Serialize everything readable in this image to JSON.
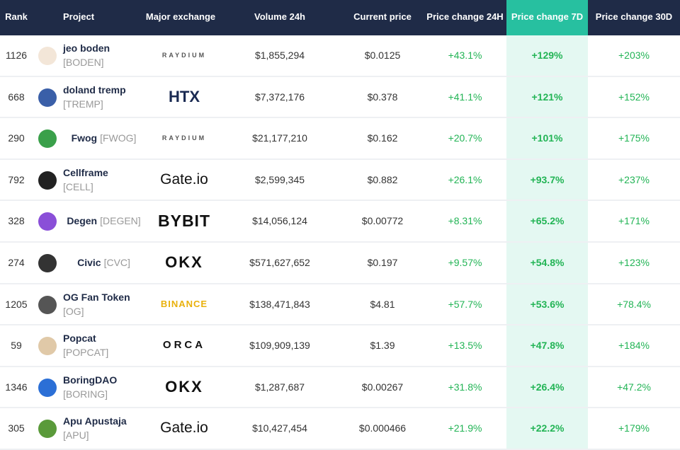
{
  "table": {
    "header": [
      "Rank",
      "Project",
      "Major exchange",
      "Volume 24h",
      "Current price",
      "Price change 24H",
      "Price change 7D",
      "Price change 30D"
    ],
    "rows": [
      {
        "rank": "1126",
        "name": "jeo boden",
        "ticker": "[BODEN]",
        "exchange": "RAYDIUM",
        "volume": "$1,855,294",
        "price": "$0.0125",
        "change_24h": "+43.1%",
        "change_7d": "+129%",
        "change_30d": "+203%"
      },
      {
        "rank": "668",
        "name": "doland tremp",
        "ticker": "[TREMP]",
        "exchange": "HTX",
        "volume": "$7,372,176",
        "price": "$0.378",
        "change_24h": "+41.1%",
        "change_7d": "+121%",
        "change_30d": "+152%"
      },
      {
        "rank": "290",
        "name": "Fwog",
        "ticker": "[FWOG]",
        "exchange": "RAYDIUM",
        "volume": "$21,177,210",
        "price": "$0.162",
        "change_24h": "+20.7%",
        "change_7d": "+101%",
        "change_30d": "+175%"
      },
      {
        "rank": "792",
        "name": "Cellframe",
        "ticker": "[CELL]",
        "exchange": "Gate.io",
        "volume": "$2,599,345",
        "price": "$0.882",
        "change_24h": "+26.1%",
        "change_7d": "+93.7%",
        "change_30d": "+237%"
      },
      {
        "rank": "328",
        "name": "Degen",
        "ticker": "[DEGEN]",
        "exchange": "BYBIT",
        "volume": "$14,056,124",
        "price": "$0.00772",
        "change_24h": "+8.31%",
        "change_7d": "+65.2%",
        "change_30d": "+171%"
      },
      {
        "rank": "274",
        "name": "Civic",
        "ticker": "[CVC]",
        "exchange": "OKX",
        "volume": "$571,627,652",
        "price": "$0.197",
        "change_24h": "+9.57%",
        "change_7d": "+54.8%",
        "change_30d": "+123%"
      },
      {
        "rank": "1205",
        "name": "OG Fan Token",
        "ticker": "[OG]",
        "exchange": "BINANCE",
        "volume": "$138,471,843",
        "price": "$4.81",
        "change_24h": "+57.7%",
        "change_7d": "+53.6%",
        "change_30d": "+78.4%"
      },
      {
        "rank": "59",
        "name": "Popcat",
        "ticker": "[POPCAT]",
        "exchange": "ORCA",
        "volume": "$109,909,139",
        "price": "$1.39",
        "change_24h": "+13.5%",
        "change_7d": "+47.8%",
        "change_30d": "+184%"
      },
      {
        "rank": "1346",
        "name": "BoringDAO",
        "ticker": "[BORING]",
        "exchange": "OKX",
        "volume": "$1,287,687",
        "price": "$0.00267",
        "change_24h": "+31.8%",
        "change_7d": "+26.4%",
        "change_30d": "+47.2%"
      },
      {
        "rank": "305",
        "name": "Apu Apustaja",
        "ticker": "[APU]",
        "exchange": "Gate.io",
        "volume": "$10,427,454",
        "price": "$0.000466",
        "change_24h": "+21.9%",
        "change_7d": "+22.2%",
        "change_30d": "+179%"
      }
    ]
  }
}
